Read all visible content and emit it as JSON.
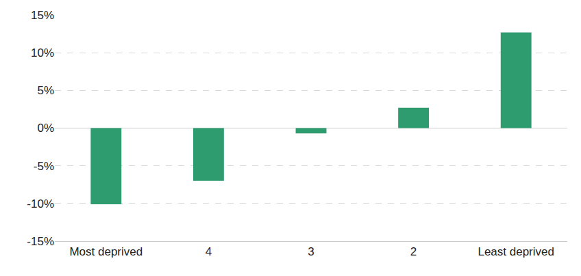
{
  "chart_data": {
    "type": "bar",
    "categories": [
      "Most deprived",
      "4",
      "3",
      "2",
      "Least deprived"
    ],
    "values": [
      -10.1,
      -7.0,
      -0.7,
      2.7,
      12.7
    ],
    "color": "#2e9c6f",
    "ylim": [
      -15,
      15
    ],
    "yticks": [
      {
        "value": -15,
        "label": "-15%"
      },
      {
        "value": -10,
        "label": "-10%"
      },
      {
        "value": -5,
        "label": "-5%"
      },
      {
        "value": 0,
        "label": "0%"
      },
      {
        "value": 5,
        "label": "5%"
      },
      {
        "value": 10,
        "label": "10%"
      },
      {
        "value": 15,
        "label": "15%"
      }
    ],
    "grid": true
  }
}
